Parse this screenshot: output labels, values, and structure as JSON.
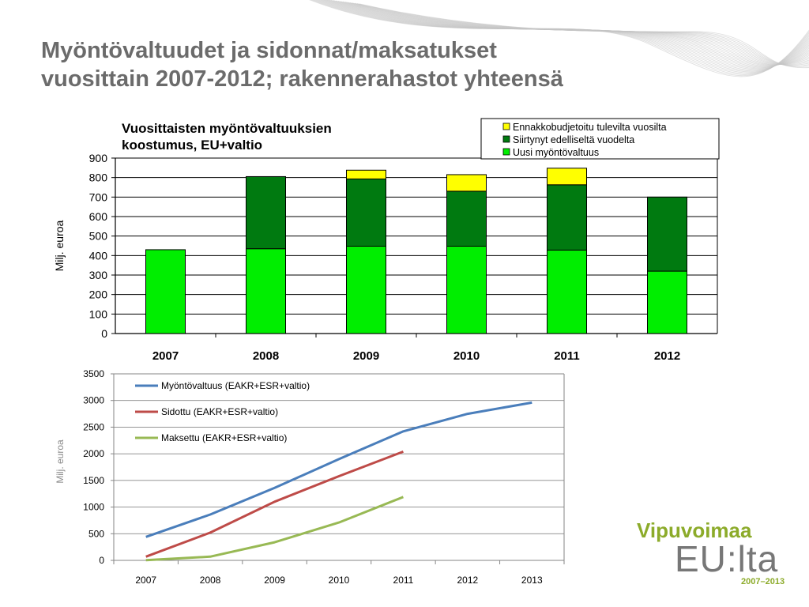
{
  "slide": {
    "title_line1": "Myöntövaltuudet ja sidonnat/maksatukset",
    "title_line2": "vuosittain 2007-2012; rakennerahastot yhteensä"
  },
  "logo": {
    "top": "Vipuvoimaa",
    "middle": "EU:lta",
    "bottom": "2007–2013",
    "color_green": "#8cab2a",
    "color_grey": "#777777"
  },
  "chart_data": [
    {
      "type": "bar",
      "stacked": true,
      "title": "Vuosittaisten myöntövaltuuksien koostumus, EU+valtio",
      "title_lines": [
        "Vuosittaisten myöntövaltuuksien",
        "koostumus, EU+valtio"
      ],
      "xlabel": "",
      "ylabel": "Milj. euroa",
      "ylim": [
        0,
        900
      ],
      "yticks": [
        0,
        100,
        200,
        300,
        400,
        500,
        600,
        700,
        800,
        900
      ],
      "grid": true,
      "legend_position": "top-right",
      "categories": [
        "2007",
        "2008",
        "2009",
        "2010",
        "2011",
        "2012"
      ],
      "series": [
        {
          "name": "Uusi myöntövaltuus",
          "color": "#00ee00",
          "values": [
            430,
            435,
            448,
            448,
            428,
            320
          ]
        },
        {
          "name": "Siirtynyt edelliseltä vuodelta",
          "color": "#007a10",
          "values": [
            0,
            370,
            345,
            282,
            335,
            380
          ]
        },
        {
          "name": "Ennakkobudjetoitu tulevilta vuosilta",
          "color": "#ffff00",
          "values": [
            0,
            0,
            45,
            85,
            85,
            0
          ]
        }
      ],
      "legend_order": [
        "Ennakkobudjetoitu tulevilta vuosilta",
        "Siirtynyt edelliseltä vuodelta",
        "Uusi myöntövaltuus"
      ]
    },
    {
      "type": "line",
      "title": "",
      "xlabel": "",
      "ylabel": "Milj. euroa",
      "ylim": [
        0,
        3500
      ],
      "yticks": [
        0,
        500,
        1000,
        1500,
        2000,
        2500,
        3000,
        3500
      ],
      "grid": true,
      "legend_position": "top-left",
      "x": [
        "2007",
        "2008",
        "2009",
        "2010",
        "2011",
        "2012",
        "2013"
      ],
      "series": [
        {
          "name": "Myöntövaltuus (EAKR+ESR+valtio)",
          "color": "#4a7ebb",
          "values": [
            440,
            860,
            1360,
            1900,
            2420,
            2750,
            2960
          ]
        },
        {
          "name": "Sidottu (EAKR+ESR+valtio)",
          "color": "#be4b48",
          "values": [
            70,
            520,
            1100,
            1580,
            2040,
            null,
            null
          ]
        },
        {
          "name": "Maksettu (EAKR+ESR+valtio)",
          "color": "#98b954",
          "values": [
            5,
            70,
            340,
            710,
            1190,
            null,
            null
          ]
        }
      ]
    }
  ]
}
